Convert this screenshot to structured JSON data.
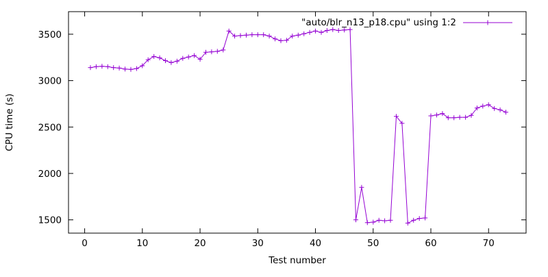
{
  "figure": {
    "background": "#ffffff",
    "border_color": "#000000",
    "text_color": "#000000"
  },
  "chart_data": {
    "type": "line",
    "title": "",
    "legend_label": "\"auto/blr_n13_p18.cpu\" using 1:2",
    "legend_position": "top-right-inside",
    "xlabel": "Test number",
    "ylabel": "CPU time (s)",
    "xlim": [
      -2.8,
      76.5
    ],
    "ylim": [
      1357,
      3743
    ],
    "xticks": [
      0,
      10,
      20,
      30,
      40,
      50,
      60,
      70
    ],
    "yticks": [
      1500,
      2000,
      2500,
      3000,
      3500
    ],
    "grid": false,
    "line_color": "#9400d3",
    "marker": "plus",
    "series": [
      {
        "name": "\"auto/blr_n13_p18.cpu\" using 1:2",
        "x": [
          1,
          2,
          3,
          4,
          5,
          6,
          7,
          8,
          9,
          10,
          11,
          12,
          13,
          14,
          15,
          16,
          17,
          18,
          19,
          20,
          21,
          22,
          23,
          24,
          25,
          26,
          27,
          28,
          29,
          30,
          31,
          32,
          33,
          34,
          35,
          36,
          37,
          38,
          39,
          40,
          41,
          42,
          43,
          44,
          45,
          46,
          47,
          48,
          49,
          50,
          51,
          52,
          53,
          54,
          55,
          56,
          57,
          58,
          59,
          60,
          61,
          62,
          63,
          64,
          65,
          66,
          67,
          68,
          69,
          70,
          71,
          72,
          73
        ],
        "y": [
          3140,
          3150,
          3155,
          3150,
          3140,
          3135,
          3125,
          3120,
          3130,
          3160,
          3225,
          3260,
          3245,
          3215,
          3195,
          3210,
          3240,
          3255,
          3270,
          3230,
          3305,
          3310,
          3315,
          3330,
          3535,
          3480,
          3485,
          3490,
          3495,
          3495,
          3495,
          3480,
          3450,
          3430,
          3435,
          3480,
          3490,
          3505,
          3520,
          3535,
          3520,
          3540,
          3550,
          3540,
          3545,
          3550,
          1500,
          1850,
          1470,
          1475,
          1495,
          1490,
          1495,
          2615,
          2540,
          1465,
          1495,
          1515,
          1520,
          2620,
          2630,
          2645,
          2600,
          2600,
          2605,
          2605,
          2625,
          2705,
          2725,
          2740,
          2700,
          2685,
          2660
        ]
      }
    ]
  }
}
